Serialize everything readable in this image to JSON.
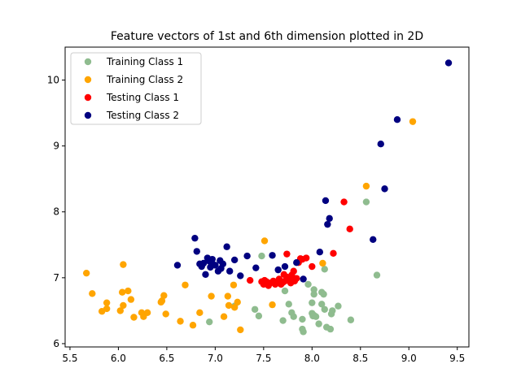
{
  "chart_data": {
    "type": "scatter",
    "title": "Feature vectors of 1st and 6th dimension plotted in 2D",
    "xlabel": "",
    "ylabel": "",
    "xlim": [
      5.45,
      9.62
    ],
    "ylim": [
      5.95,
      10.5
    ],
    "xticks": [
      "5.5",
      "6.0",
      "6.5",
      "7.0",
      "7.5",
      "8.0",
      "8.5",
      "9.0",
      "9.5"
    ],
    "yticks": [
      "6",
      "7",
      "8",
      "9",
      "10"
    ],
    "grid": false,
    "legend": "top-left",
    "series": [
      {
        "name": "Training Class 1",
        "color": "#8fbc8f",
        "points": [
          [
            6.94,
            6.33
          ],
          [
            7.2,
            6.57
          ],
          [
            7.41,
            6.52
          ],
          [
            7.45,
            6.42
          ],
          [
            7.48,
            7.33
          ],
          [
            7.7,
            6.35
          ],
          [
            7.72,
            6.8
          ],
          [
            7.76,
            6.6
          ],
          [
            7.79,
            6.47
          ],
          [
            7.81,
            6.41
          ],
          [
            7.9,
            6.37
          ],
          [
            7.9,
            6.22
          ],
          [
            7.91,
            6.18
          ],
          [
            7.96,
            6.9
          ],
          [
            8.0,
            6.62
          ],
          [
            8.0,
            6.46
          ],
          [
            8.01,
            6.42
          ],
          [
            8.02,
            6.43
          ],
          [
            8.04,
            6.41
          ],
          [
            8.02,
            6.82
          ],
          [
            8.02,
            6.75
          ],
          [
            8.07,
            6.3
          ],
          [
            8.1,
            6.78
          ],
          [
            8.1,
            6.6
          ],
          [
            8.12,
            6.75
          ],
          [
            8.13,
            6.52
          ],
          [
            8.15,
            6.25
          ],
          [
            8.19,
            6.22
          ],
          [
            8.2,
            6.45
          ],
          [
            8.21,
            6.5
          ],
          [
            8.27,
            6.57
          ],
          [
            8.4,
            6.36
          ],
          [
            8.56,
            8.15
          ],
          [
            8.67,
            7.04
          ],
          [
            8.13,
            7.13
          ]
        ]
      },
      {
        "name": "Training Class 2",
        "color": "#ffa500",
        "points": [
          [
            5.67,
            7.07
          ],
          [
            5.73,
            6.76
          ],
          [
            5.83,
            6.49
          ],
          [
            5.88,
            6.53
          ],
          [
            5.88,
            6.62
          ],
          [
            6.02,
            6.5
          ],
          [
            6.04,
            6.78
          ],
          [
            6.05,
            6.58
          ],
          [
            6.05,
            7.2
          ],
          [
            6.1,
            6.8
          ],
          [
            6.13,
            6.67
          ],
          [
            6.16,
            6.4
          ],
          [
            6.24,
            6.47
          ],
          [
            6.26,
            6.41
          ],
          [
            6.3,
            6.47
          ],
          [
            6.44,
            6.63
          ],
          [
            6.45,
            6.65
          ],
          [
            6.47,
            6.73
          ],
          [
            6.49,
            6.45
          ],
          [
            6.64,
            6.34
          ],
          [
            6.69,
            6.89
          ],
          [
            6.77,
            6.28
          ],
          [
            6.84,
            6.47
          ],
          [
            6.96,
            6.72
          ],
          [
            7.09,
            6.41
          ],
          [
            7.13,
            6.72
          ],
          [
            7.14,
            6.58
          ],
          [
            7.19,
            6.89
          ],
          [
            7.2,
            6.55
          ],
          [
            7.23,
            6.63
          ],
          [
            7.26,
            6.21
          ],
          [
            7.51,
            7.56
          ],
          [
            7.59,
            6.59
          ],
          [
            8.11,
            7.22
          ],
          [
            8.56,
            8.39
          ],
          [
            9.04,
            9.37
          ]
        ]
      },
      {
        "name": "Testing Class 1",
        "color": "#ff0000",
        "points": [
          [
            7.36,
            6.96
          ],
          [
            7.48,
            6.94
          ],
          [
            7.5,
            6.9
          ],
          [
            7.51,
            6.96
          ],
          [
            7.53,
            6.94
          ],
          [
            7.55,
            6.88
          ],
          [
            7.57,
            6.92
          ],
          [
            7.6,
            6.95
          ],
          [
            7.62,
            6.9
          ],
          [
            7.64,
            6.93
          ],
          [
            7.66,
            6.98
          ],
          [
            7.68,
            6.9
          ],
          [
            7.7,
            6.93
          ],
          [
            7.71,
            7.05
          ],
          [
            7.72,
            6.95
          ],
          [
            7.74,
            7.01
          ],
          [
            7.74,
            7.36
          ],
          [
            7.77,
            6.97
          ],
          [
            7.78,
            6.92
          ],
          [
            7.79,
            7.04
          ],
          [
            7.81,
            7.1
          ],
          [
            7.82,
            6.95
          ],
          [
            7.84,
            6.99
          ],
          [
            7.86,
            7.23
          ],
          [
            7.88,
            7.29
          ],
          [
            7.9,
            7.28
          ],
          [
            7.94,
            7.3
          ],
          [
            8.0,
            7.17
          ],
          [
            8.22,
            7.37
          ],
          [
            8.33,
            8.15
          ],
          [
            8.39,
            7.74
          ]
        ]
      },
      {
        "name": "Testing Class 2",
        "color": "#000080",
        "points": [
          [
            6.61,
            7.19
          ],
          [
            6.79,
            7.6
          ],
          [
            6.81,
            7.4
          ],
          [
            6.84,
            7.21
          ],
          [
            6.86,
            7.17
          ],
          [
            6.88,
            7.22
          ],
          [
            6.9,
            7.05
          ],
          [
            6.92,
            7.3
          ],
          [
            6.94,
            7.25
          ],
          [
            6.95,
            7.16
          ],
          [
            6.97,
            7.28
          ],
          [
            6.98,
            7.2
          ],
          [
            7.0,
            7.19
          ],
          [
            7.03,
            7.1
          ],
          [
            7.05,
            7.26
          ],
          [
            7.06,
            7.14
          ],
          [
            7.08,
            7.21
          ],
          [
            7.12,
            7.47
          ],
          [
            7.15,
            7.1
          ],
          [
            7.2,
            7.27
          ],
          [
            7.26,
            7.03
          ],
          [
            7.33,
            7.33
          ],
          [
            7.42,
            7.15
          ],
          [
            7.59,
            7.34
          ],
          [
            7.65,
            7.12
          ],
          [
            7.72,
            7.17
          ],
          [
            7.84,
            7.23
          ],
          [
            7.91,
            6.98
          ],
          [
            8.08,
            7.39
          ],
          [
            8.14,
            8.17
          ],
          [
            8.16,
            7.81
          ],
          [
            8.18,
            7.9
          ],
          [
            8.63,
            7.58
          ],
          [
            8.71,
            9.03
          ],
          [
            8.75,
            8.35
          ],
          [
            8.88,
            9.4
          ],
          [
            9.41,
            10.26
          ]
        ]
      }
    ]
  }
}
